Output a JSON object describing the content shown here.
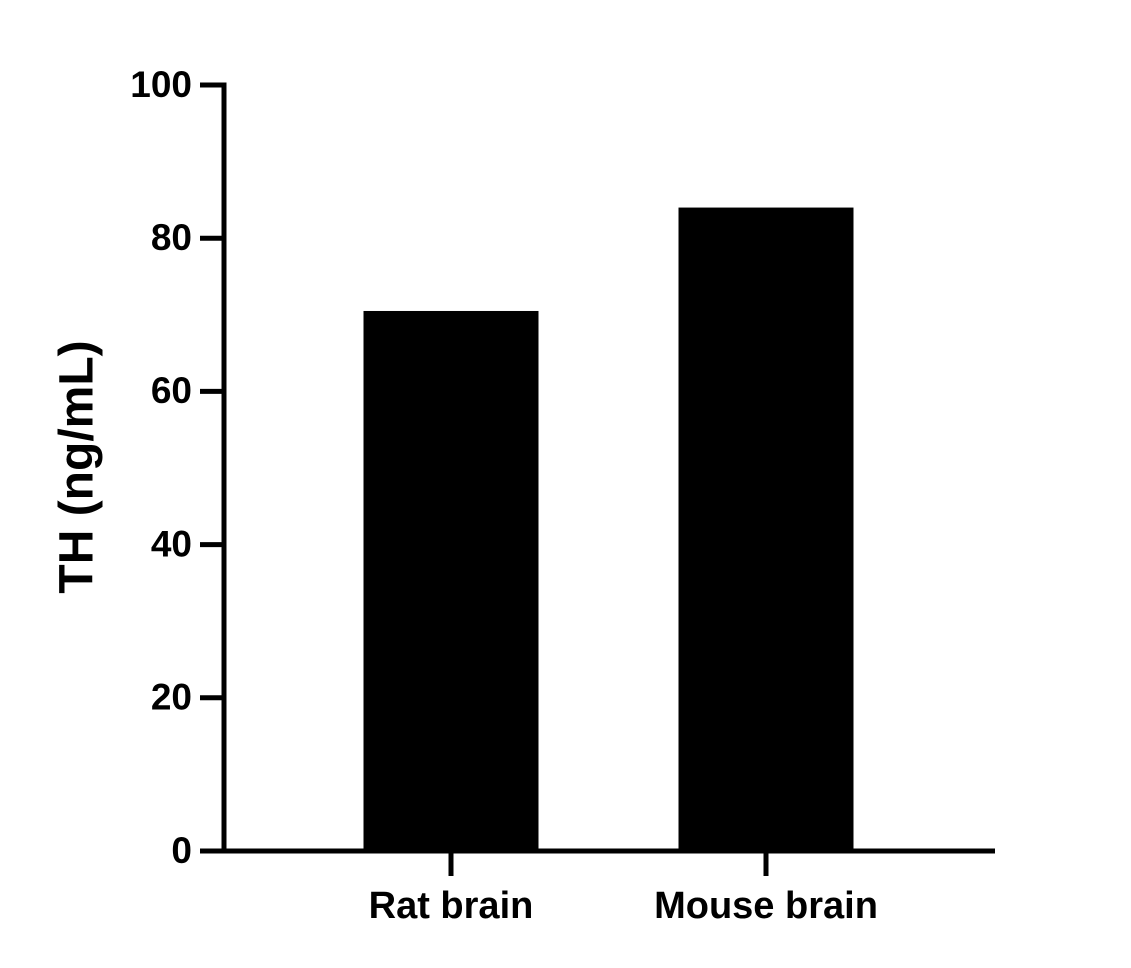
{
  "chart_data": {
    "type": "bar",
    "y_label": "TH (ng/mL)",
    "categories": [
      "Rat brain",
      "Mouse brain"
    ],
    "values": [
      70.5,
      84
    ],
    "color": "#000000",
    "ylim": [
      0,
      100
    ],
    "yticks": [
      0,
      20,
      40,
      60,
      80,
      100
    ],
    "grid": false
  }
}
